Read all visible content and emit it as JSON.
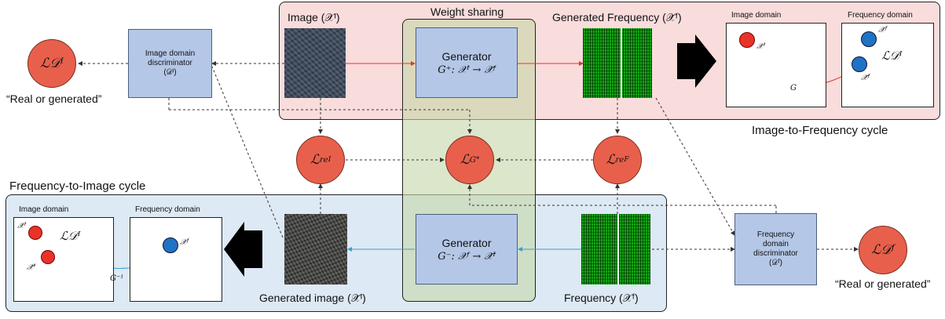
{
  "top_cycle": {
    "label": "Image-to-Frequency cycle",
    "image_label": "Image (𝒳ᴵ)",
    "gen_freq_label": "Generated Frequency (𝒳̄ᶠ)",
    "generator_title": "Generator",
    "generator_formula": "G⁺: 𝒳ᴵ → 𝒳̄ᶠ",
    "domain_image": "Image domain",
    "domain_freq": "Frequency domain",
    "x_i": "𝒳ᴵ",
    "x_f": "𝒳ᶠ",
    "xbar_f": "𝒳̄ᶠ",
    "g_label": "G",
    "loss": "ℒ𝒟ᴵ"
  },
  "bottom_cycle": {
    "label": "Frequency-to-Image cycle",
    "gen_image_label": "Generated image (𝒳̄ᴵ)",
    "frequency_label": "Frequency (𝒳ᶠ)",
    "generator_title": "Generator",
    "generator_formula": "G⁻: 𝒳ᶠ → 𝒳̄ᴵ",
    "domain_image": "Image domain",
    "domain_freq": "Frequency domain",
    "x_i": "𝒳ᴵ",
    "xbar_i": "𝒳̄ᴵ",
    "x_f": "𝒳ᶠ",
    "g_inv_label": "G⁻¹",
    "loss": "ℒ𝒟ᴵ"
  },
  "weight_sharing": "Weight sharing",
  "discriminators": {
    "image": {
      "line1": "Image domain",
      "line2": "discriminator",
      "line3": "(𝒟ᴵ)"
    },
    "frequency": {
      "line1": "Frequency",
      "line2": "domain",
      "line3": "discriminator",
      "line4": "(𝒟ᶠ)"
    }
  },
  "losses": {
    "d_image": "ℒ𝒟ᴵ",
    "d_freq": "ℒ𝒟ᶠ",
    "re_image_base": "ℒ",
    "re_image_sub": "re",
    "re_image_sup": "I",
    "g_star_base": "ℒ",
    "g_star_sub": "G",
    "g_star_sup": "*",
    "re_freq_base": "ℒ",
    "re_freq_sub": "re",
    "re_freq_sup": "F"
  },
  "real_or_generated_left": "“Real or generated”",
  "real_or_generated_right": "“Real or generated”",
  "colors": {
    "loss_circle": "#e8604b",
    "box": "#b4c7e7",
    "red_arrow": "#e8332a",
    "blue_arrow": "#3aa0d0"
  }
}
